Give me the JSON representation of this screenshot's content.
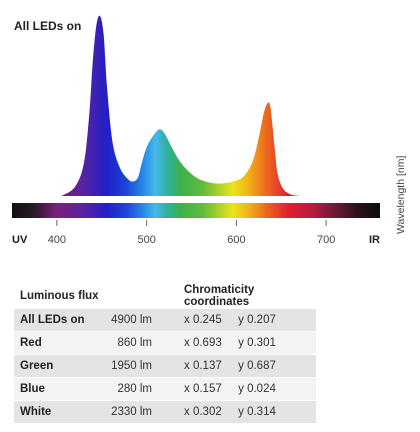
{
  "chart_data": {
    "type": "line",
    "title": "All LEDs on",
    "xlabel": "",
    "ylabel": "Wavelength [nm]",
    "x_tick_labels": [
      {
        "x": 360,
        "label": "UV"
      },
      {
        "x": 400,
        "label": "400"
      },
      {
        "x": 500,
        "label": "500"
      },
      {
        "x": 600,
        "label": "600"
      },
      {
        "x": 700,
        "label": "700"
      },
      {
        "x": 750,
        "label": "IR"
      }
    ],
    "xlim": [
      350,
      760
    ],
    "ylim": [
      0,
      1
    ],
    "series": [
      {
        "x": [
          405,
          420,
          430,
          436,
          440,
          444,
          448,
          452,
          456,
          462,
          470,
          478,
          484,
          490,
          494,
          500,
          508,
          514,
          518,
          522,
          528,
          536,
          546,
          556,
          566,
          576,
          586,
          596,
          606,
          614,
          620,
          626,
          630,
          633,
          636,
          638,
          640,
          643,
          646,
          652,
          660,
          670
        ],
        "values": [
          0.0,
          0.05,
          0.18,
          0.45,
          0.75,
          0.95,
          1.0,
          0.9,
          0.6,
          0.3,
          0.16,
          0.1,
          0.08,
          0.1,
          0.17,
          0.27,
          0.34,
          0.37,
          0.36,
          0.33,
          0.27,
          0.2,
          0.14,
          0.1,
          0.08,
          0.07,
          0.07,
          0.08,
          0.1,
          0.15,
          0.22,
          0.35,
          0.45,
          0.5,
          0.52,
          0.49,
          0.4,
          0.25,
          0.12,
          0.04,
          0.01,
          0.0
        ]
      }
    ],
    "grid": false,
    "legend": "none"
  },
  "table": {
    "header_flux": "Luminous flux",
    "header_chroma": "Chromaticity coordinates",
    "rows": [
      {
        "name": "All LEDs on",
        "flux": "4900 lm",
        "x_label": "x",
        "x": "0.245",
        "y_label": "y",
        "y": "0.207"
      },
      {
        "name": "Red",
        "flux": "860 lm",
        "x_label": "x",
        "x": "0.693",
        "y_label": "y",
        "y": "0.301"
      },
      {
        "name": "Green",
        "flux": "1950 lm",
        "x_label": "x",
        "x": "0.137",
        "y_label": "y",
        "y": "0.687"
      },
      {
        "name": "Blue",
        "flux": "280 lm",
        "x_label": "x",
        "x": "0.157",
        "y_label": "y",
        "y": "0.024"
      },
      {
        "name": "White",
        "flux": "2330 lm",
        "x_label": "x",
        "x": "0.302",
        "y_label": "y",
        "y": "0.314"
      }
    ]
  }
}
